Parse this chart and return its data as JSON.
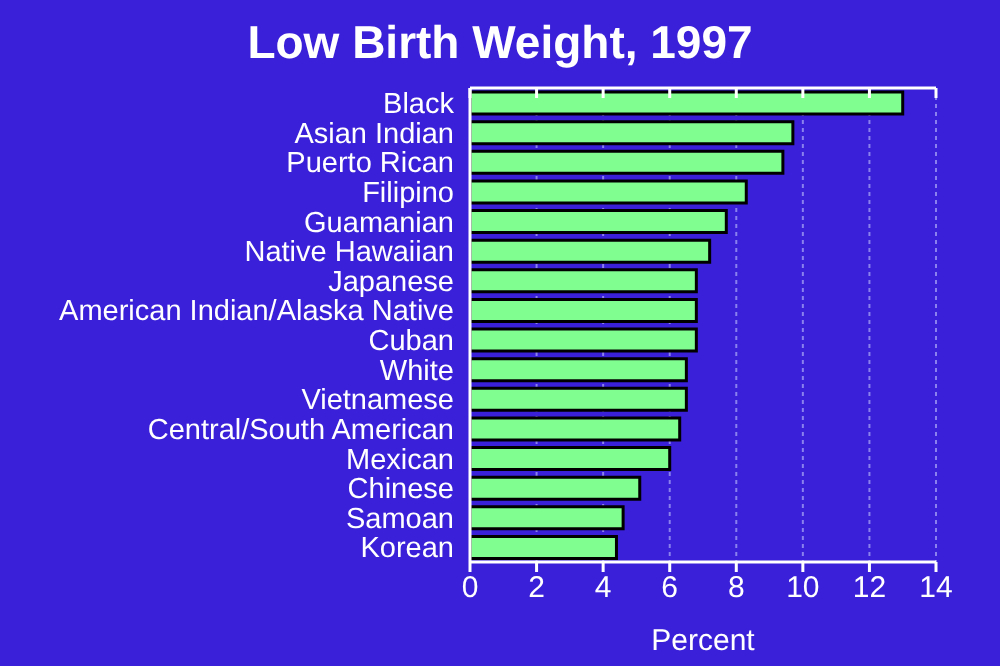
{
  "chart_data": {
    "type": "bar",
    "orientation": "horizontal",
    "title": "Low Birth Weight, 1997",
    "xlabel": "Percent",
    "categories": [
      "Black",
      "Asian Indian",
      "Puerto Rican",
      "Filipino",
      "Guamanian",
      "Native Hawaiian",
      "Japanese",
      "American Indian/Alaska Native",
      "Cuban",
      "White",
      "Vietnamese",
      "Central/South American",
      "Mexican",
      "Chinese",
      "Samoan",
      "Korean"
    ],
    "values": [
      13.0,
      9.7,
      9.4,
      8.3,
      7.7,
      7.2,
      6.8,
      6.8,
      6.8,
      6.5,
      6.5,
      6.3,
      6.0,
      5.1,
      4.6,
      4.4
    ],
    "color": "#80ff90",
    "xlim": [
      0,
      14
    ],
    "xticks": [
      0,
      2,
      4,
      6,
      8,
      10,
      12,
      14
    ],
    "grid": "x"
  }
}
